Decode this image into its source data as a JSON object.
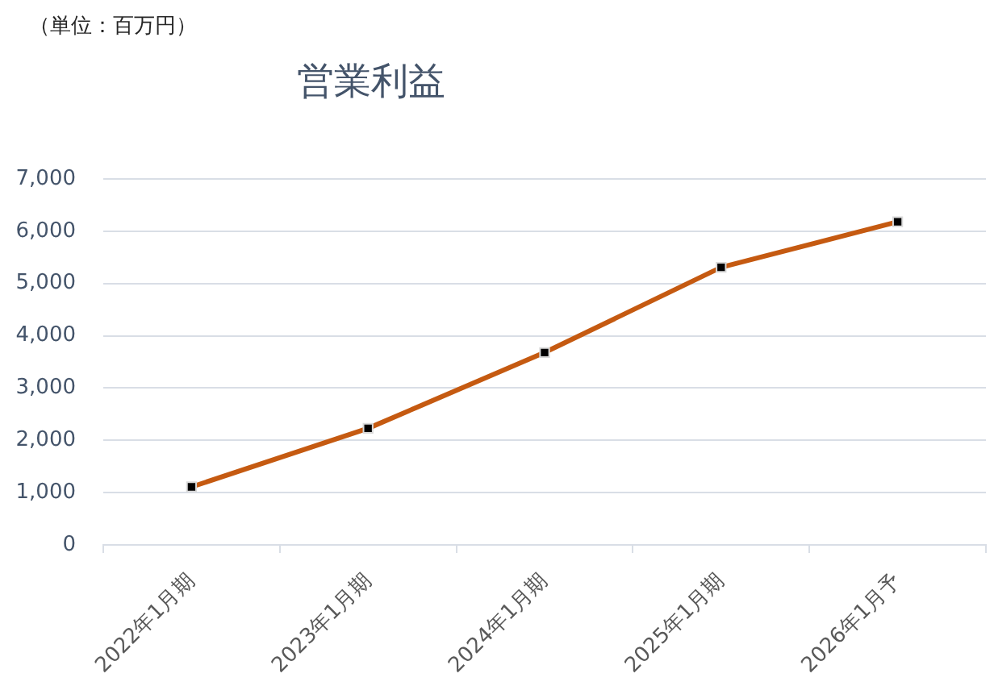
{
  "chart_data": {
    "type": "line",
    "title": "営業利益",
    "annotations": [
      "（単位：百万円）"
    ],
    "categories": [
      "2022年1月期",
      "2023年1月期",
      "2024年1月期",
      "2025年1月期",
      "2026年1月予"
    ],
    "series": [
      {
        "color": "#c55a11",
        "values": [
          1110,
          2230,
          3680,
          5310,
          6180
        ]
      }
    ],
    "ylim": [
      0,
      7000
    ],
    "yticks": [
      0,
      {
        "value": 1000,
        "label": "1,000"
      },
      {
        "value": 2000,
        "label": "2,000"
      },
      {
        "value": 3000,
        "label": "3,000"
      },
      {
        "value": 4000,
        "label": "4,000"
      },
      {
        "value": 5000,
        "label": "5,000"
      },
      {
        "value": 6000,
        "label": "6,000"
      },
      {
        "value": 7000,
        "label": "7,000"
      }
    ],
    "grid": "y",
    "marker": "square",
    "line_style": "solid"
  }
}
